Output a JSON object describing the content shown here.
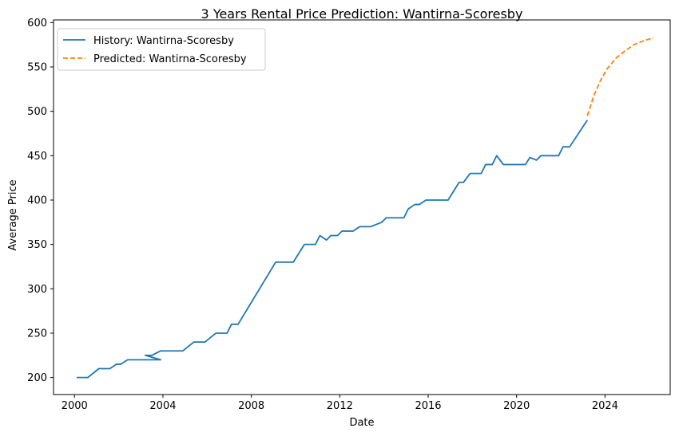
{
  "chart_data": {
    "type": "line",
    "title": "3 Years Rental Price Prediction: Wantirna-Scoresby",
    "xlabel": "Date",
    "ylabel": "Average Price",
    "xlim": [
      1999.05,
      2026.95
    ],
    "ylim": [
      180.8,
      603.0
    ],
    "x_ticks": [
      2000,
      2004,
      2008,
      2012,
      2016,
      2020,
      2024
    ],
    "y_ticks": [
      200,
      250,
      300,
      350,
      400,
      450,
      500,
      550,
      600
    ],
    "grid": false,
    "legend_position": "upper-left",
    "colors": {
      "history": "#1f77b4",
      "predicted": "#ff7f0e"
    },
    "series": [
      {
        "name": "History: Wantirna-Scoresby",
        "style": "solid",
        "x": [
          2000.1,
          2000.6,
          2001.1,
          2001.6,
          2001.9,
          2002.1,
          2002.4,
          2002.6,
          2002.8,
          2003.0,
          2003.2,
          2003.5,
          2003.9,
          2003.2,
          2003.5,
          2003.9,
          2004.9,
          2005.4,
          2005.9,
          2006.4,
          2006.9,
          2007.1,
          2007.4,
          2009.1,
          2009.9,
          2010.4,
          2010.9,
          2011.1,
          2011.4,
          2011.6,
          2011.9,
          2012.1,
          2012.6,
          2012.9,
          2013.4,
          2013.9,
          2014.1,
          2014.4,
          2014.9,
          2015.1,
          2015.4,
          2015.6,
          2015.9,
          2016.4,
          2016.9,
          2017.4,
          2017.6,
          2017.9,
          2018.4,
          2018.6,
          2018.9,
          2019.1,
          2019.4,
          2019.9,
          2020.4,
          2020.6,
          2020.9,
          2021.1,
          2021.6,
          2021.9,
          2022.1,
          2022.4,
          2023.2
        ],
        "y": [
          200,
          200,
          210,
          210,
          215,
          215,
          220,
          220,
          220,
          220,
          220,
          220,
          220,
          225,
          225,
          230,
          230,
          240,
          240,
          250,
          250,
          260,
          260,
          330,
          330,
          350,
          350,
          360,
          355,
          360,
          360,
          365,
          365,
          370,
          370,
          375,
          380,
          380,
          380,
          390,
          395,
          395,
          400,
          400,
          400,
          420,
          420,
          430,
          430,
          440,
          440,
          450,
          440,
          440,
          440,
          448,
          445,
          450,
          450,
          450,
          460,
          460,
          490
        ]
      },
      {
        "name": "Predicted: Wantirna-Scoresby",
        "style": "dashed",
        "x": [
          2023.2,
          2023.5,
          2023.8,
          2024.1,
          2024.5,
          2024.9,
          2025.3,
          2025.7,
          2026.2
        ],
        "y": [
          495,
          518,
          535,
          548,
          560,
          568,
          575,
          579,
          583
        ]
      }
    ]
  }
}
